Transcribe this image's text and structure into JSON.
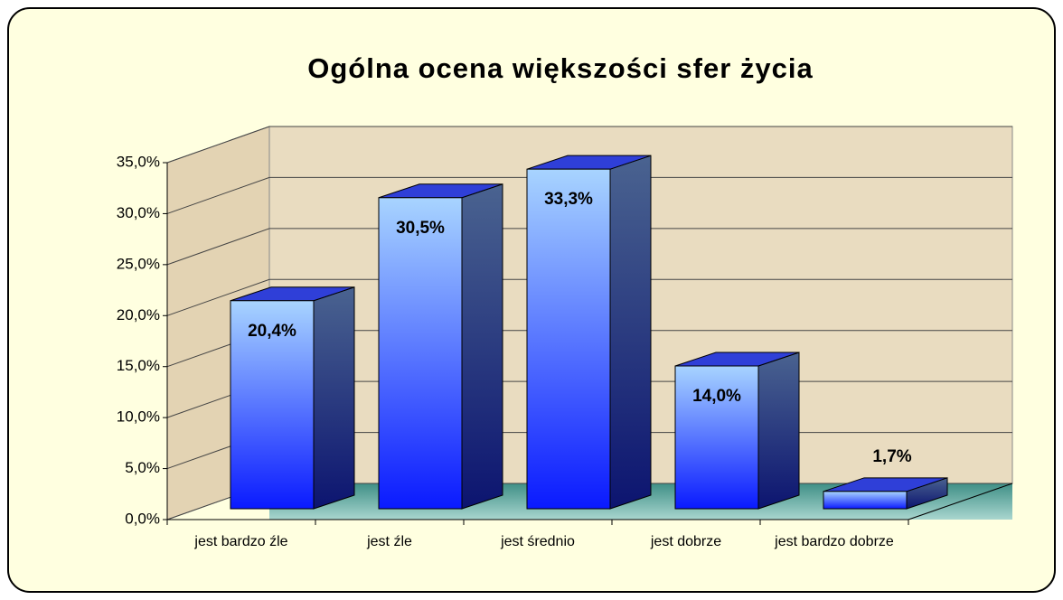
{
  "chart_data": {
    "type": "bar3d",
    "title": "Ogólna ocena większości sfer życia",
    "categories": [
      "jest bardzo źle",
      "jest źle",
      "jest średnio",
      "jest dobrze",
      "jest bardzo dobrze"
    ],
    "values": [
      20.4,
      30.5,
      33.3,
      14.0,
      1.7
    ],
    "value_labels": [
      "20,4%",
      "30,5%",
      "33,3%",
      "14,0%",
      "1,7%"
    ],
    "ylim": [
      0,
      35
    ],
    "yticks": [
      {
        "value": 0,
        "label": "0,0%"
      },
      {
        "value": 5,
        "label": "5,0%"
      },
      {
        "value": 10,
        "label": "10,0%"
      },
      {
        "value": 15,
        "label": "15,0%"
      },
      {
        "value": 20,
        "label": "20,0%"
      },
      {
        "value": 25,
        "label": "25,0%"
      },
      {
        "value": 30,
        "label": "30,0%"
      },
      {
        "value": 35,
        "label": "35,0%"
      }
    ],
    "grid": true
  }
}
